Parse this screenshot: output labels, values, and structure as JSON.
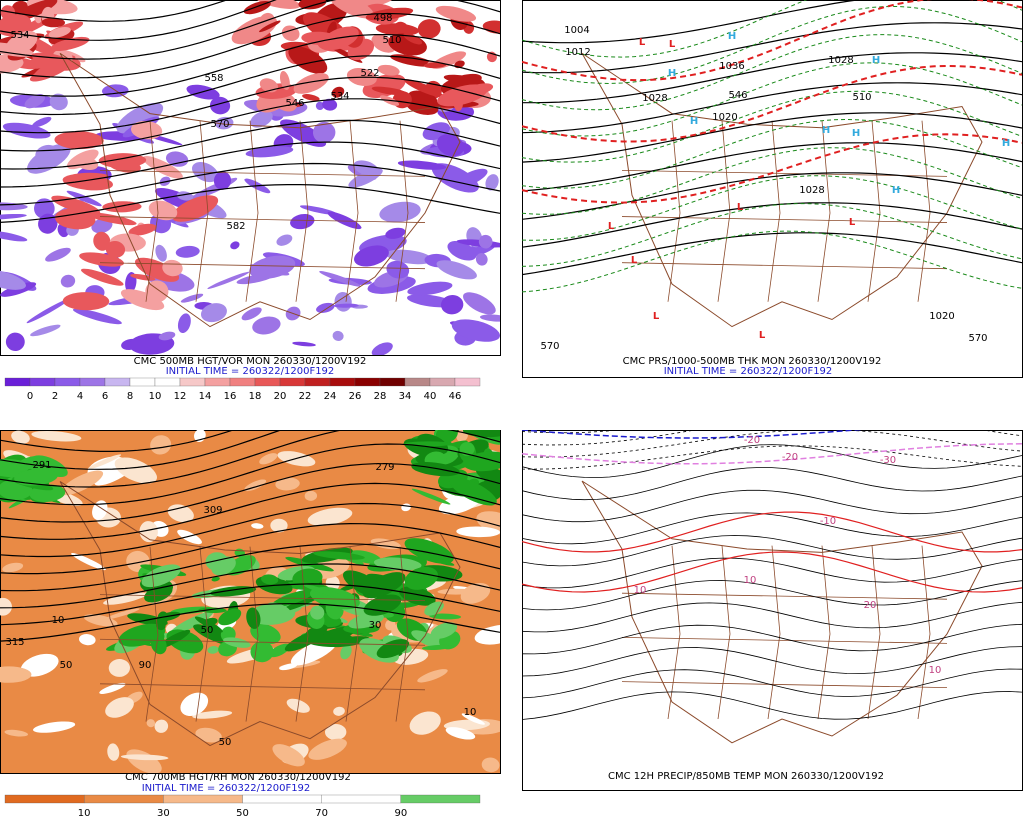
{
  "panels": [
    {
      "title": "CMC 500MB HGT/VOR MON 260330/1200V192",
      "initial_time": "INITIAL TIME = 260322/1200F192",
      "colorbar": [
        "0",
        "2",
        "4",
        "6",
        "8",
        "10",
        "12",
        "14",
        "16",
        "18",
        "20",
        "22",
        "24",
        "26",
        "28",
        "34",
        "40",
        "46"
      ],
      "contour_labels": [
        "534",
        "498",
        "510",
        "522",
        "534",
        "546",
        "558",
        "570",
        "582"
      ]
    },
    {
      "title": "CMC PRS/1000-500MB THK MON 260330/1200V192",
      "initial_time": "INITIAL TIME = 260322/1200F192",
      "contour_labels": [
        "1004",
        "1012",
        "1036",
        "1028",
        "1028",
        "1020",
        "1028",
        "1020",
        "570",
        "570",
        "510",
        "546"
      ],
      "symbols": [
        "L",
        "L",
        "H",
        "H",
        "H",
        "H",
        "H",
        "H",
        "H",
        "H",
        "L",
        "L",
        "L",
        "L",
        "L",
        "L"
      ]
    },
    {
      "title": "CMC 700MB HGT/RH MON 260330/1200V192",
      "initial_time": "INITIAL TIME = 260322/1200F192",
      "colorbar": [
        "10",
        "30",
        "50",
        "70",
        "90"
      ],
      "contour_labels": [
        "291",
        "279",
        "309",
        "315",
        "10",
        "50",
        "90",
        "50",
        "30",
        "10",
        "50"
      ]
    },
    {
      "title": "CMC 12H PRECIP/850MB TEMP MON 260330/1200V192",
      "contour_labels": [
        "-20",
        "-20",
        "-30",
        "-10",
        "10",
        "10",
        "10",
        "20"
      ]
    }
  ]
}
